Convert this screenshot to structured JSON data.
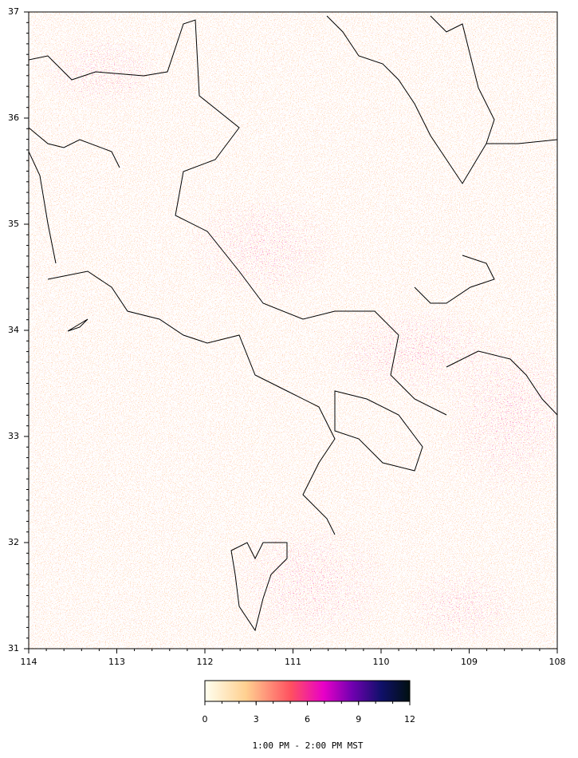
{
  "map": {
    "xlim": [
      114,
      108
    ],
    "ylim": [
      31,
      37
    ],
    "xticks": [
      114,
      113,
      112,
      111,
      110,
      109,
      108
    ],
    "yticks": [
      31,
      32,
      33,
      34,
      35,
      36,
      37
    ],
    "colorbar": {
      "lim": [
        0,
        12
      ],
      "ticks": [
        0,
        3,
        6,
        9,
        12
      ]
    },
    "caption": "1:00 PM - 2:00 PM MST"
  }
}
